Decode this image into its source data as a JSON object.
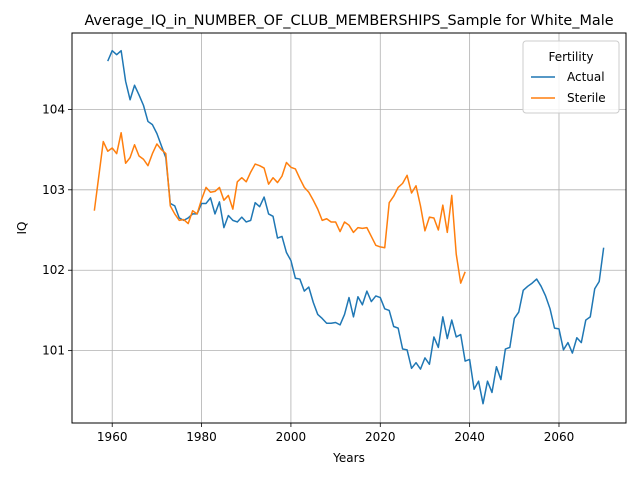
{
  "chart_data": {
    "type": "line",
    "title": "Average_IQ_in_NUMBER_OF_CLUB_MEMBERSHIPS_Sample for White_Male",
    "xlabel": "Years",
    "ylabel": "IQ",
    "xlim": [
      1951,
      2075
    ],
    "ylim": [
      100.1,
      104.95
    ],
    "x_ticks": [
      1960,
      1980,
      2000,
      2020,
      2040,
      2060
    ],
    "y_ticks": [
      101,
      102,
      103,
      104
    ],
    "grid": true,
    "legend": {
      "title": "Fertility",
      "position": "top-right"
    },
    "series": [
      {
        "name": "Actual",
        "color": "#1f77b4",
        "x": [
          1959,
          1960,
          1961,
          1962,
          1963,
          1964,
          1965,
          1966,
          1967,
          1968,
          1969,
          1970,
          1971,
          1972,
          1973,
          1974,
          1975,
          1976,
          1977,
          1978,
          1979,
          1980,
          1981,
          1982,
          1983,
          1984,
          1985,
          1986,
          1987,
          1988,
          1989,
          1990,
          1991,
          1992,
          1993,
          1994,
          1995,
          1996,
          1997,
          1998,
          1999,
          2000,
          2001,
          2002,
          2003,
          2004,
          2005,
          2006,
          2007,
          2008,
          2009,
          2010,
          2011,
          2012,
          2013,
          2014,
          2015,
          2016,
          2017,
          2018,
          2019,
          2020,
          2021,
          2022,
          2023,
          2024,
          2025,
          2026,
          2027,
          2028,
          2029,
          2030,
          2031,
          2032,
          2033,
          2034,
          2035,
          2036,
          2037,
          2038,
          2039,
          2040,
          2041,
          2042,
          2043,
          2044,
          2045,
          2046,
          2047,
          2048,
          2049,
          2050,
          2051,
          2052,
          2053,
          2054,
          2055,
          2056,
          2057,
          2058,
          2059,
          2060,
          2061,
          2062,
          2063,
          2064,
          2065,
          2066,
          2067,
          2068,
          2069,
          2070
        ],
        "values": [
          104.6,
          104.73,
          104.68,
          104.73,
          104.35,
          104.12,
          104.3,
          104.18,
          104.05,
          103.85,
          103.81,
          103.7,
          103.55,
          103.4,
          102.83,
          102.8,
          102.65,
          102.62,
          102.65,
          102.7,
          102.7,
          102.83,
          102.83,
          102.9,
          102.7,
          102.85,
          102.53,
          102.68,
          102.62,
          102.6,
          102.66,
          102.6,
          102.62,
          102.84,
          102.79,
          102.91,
          102.7,
          102.67,
          102.4,
          102.42,
          102.22,
          102.12,
          101.9,
          101.89,
          101.74,
          101.79,
          101.6,
          101.45,
          101.4,
          101.34,
          101.34,
          101.35,
          101.32,
          101.45,
          101.66,
          101.42,
          101.67,
          101.57,
          101.74,
          101.61,
          101.68,
          101.66,
          101.52,
          101.5,
          101.3,
          101.28,
          101.02,
          101.01,
          100.78,
          100.85,
          100.77,
          100.91,
          100.83,
          101.17,
          101.04,
          101.42,
          101.15,
          101.38,
          101.17,
          101.2,
          100.87,
          100.89,
          100.52,
          100.62,
          100.34,
          100.62,
          100.48,
          100.8,
          100.64,
          101.02,
          101.04,
          101.4,
          101.48,
          101.75,
          101.8,
          101.84,
          101.89,
          101.8,
          101.68,
          101.52,
          101.28,
          101.27,
          101.01,
          101.1,
          100.97,
          101.16,
          101.1,
          101.38,
          101.42,
          101.77,
          101.86,
          102.28
        ]
      },
      {
        "name": "Sterile",
        "color": "#ff7f0e",
        "x": [
          1956,
          1957,
          1958,
          1959,
          1960,
          1961,
          1962,
          1963,
          1964,
          1965,
          1966,
          1967,
          1968,
          1969,
          1970,
          1971,
          1972,
          1973,
          1974,
          1975,
          1976,
          1977,
          1978,
          1979,
          1980,
          1981,
          1982,
          1983,
          1984,
          1985,
          1986,
          1987,
          1988,
          1989,
          1990,
          1991,
          1992,
          1993,
          1994,
          1995,
          1996,
          1997,
          1998,
          1999,
          2000,
          2001,
          2002,
          2003,
          2004,
          2005,
          2006,
          2007,
          2008,
          2009,
          2010,
          2011,
          2012,
          2013,
          2014,
          2015,
          2016,
          2017,
          2018,
          2019,
          2020,
          2021,
          2022,
          2023,
          2024,
          2025,
          2026,
          2027,
          2028,
          2029,
          2030,
          2031,
          2032,
          2033,
          2034,
          2035,
          2036,
          2037,
          2038,
          2039
        ],
        "values": [
          102.74,
          103.17,
          103.6,
          103.48,
          103.52,
          103.45,
          103.71,
          103.33,
          103.4,
          103.56,
          103.42,
          103.38,
          103.3,
          103.45,
          103.57,
          103.5,
          103.45,
          102.8,
          102.7,
          102.62,
          102.63,
          102.58,
          102.74,
          102.7,
          102.88,
          103.03,
          102.97,
          102.98,
          103.03,
          102.87,
          102.93,
          102.76,
          103.1,
          103.15,
          103.1,
          103.22,
          103.32,
          103.3,
          103.27,
          103.07,
          103.15,
          103.09,
          103.17,
          103.34,
          103.28,
          103.26,
          103.14,
          103.03,
          102.97,
          102.87,
          102.76,
          102.62,
          102.64,
          102.6,
          102.6,
          102.48,
          102.6,
          102.56,
          102.47,
          102.53,
          102.52,
          102.53,
          102.42,
          102.31,
          102.29,
          102.28,
          102.84,
          102.92,
          103.03,
          103.08,
          103.18,
          102.96,
          103.05,
          102.8,
          102.49,
          102.66,
          102.65,
          102.5,
          102.81,
          102.47,
          102.93,
          102.2,
          101.84,
          101.98
        ]
      }
    ]
  }
}
